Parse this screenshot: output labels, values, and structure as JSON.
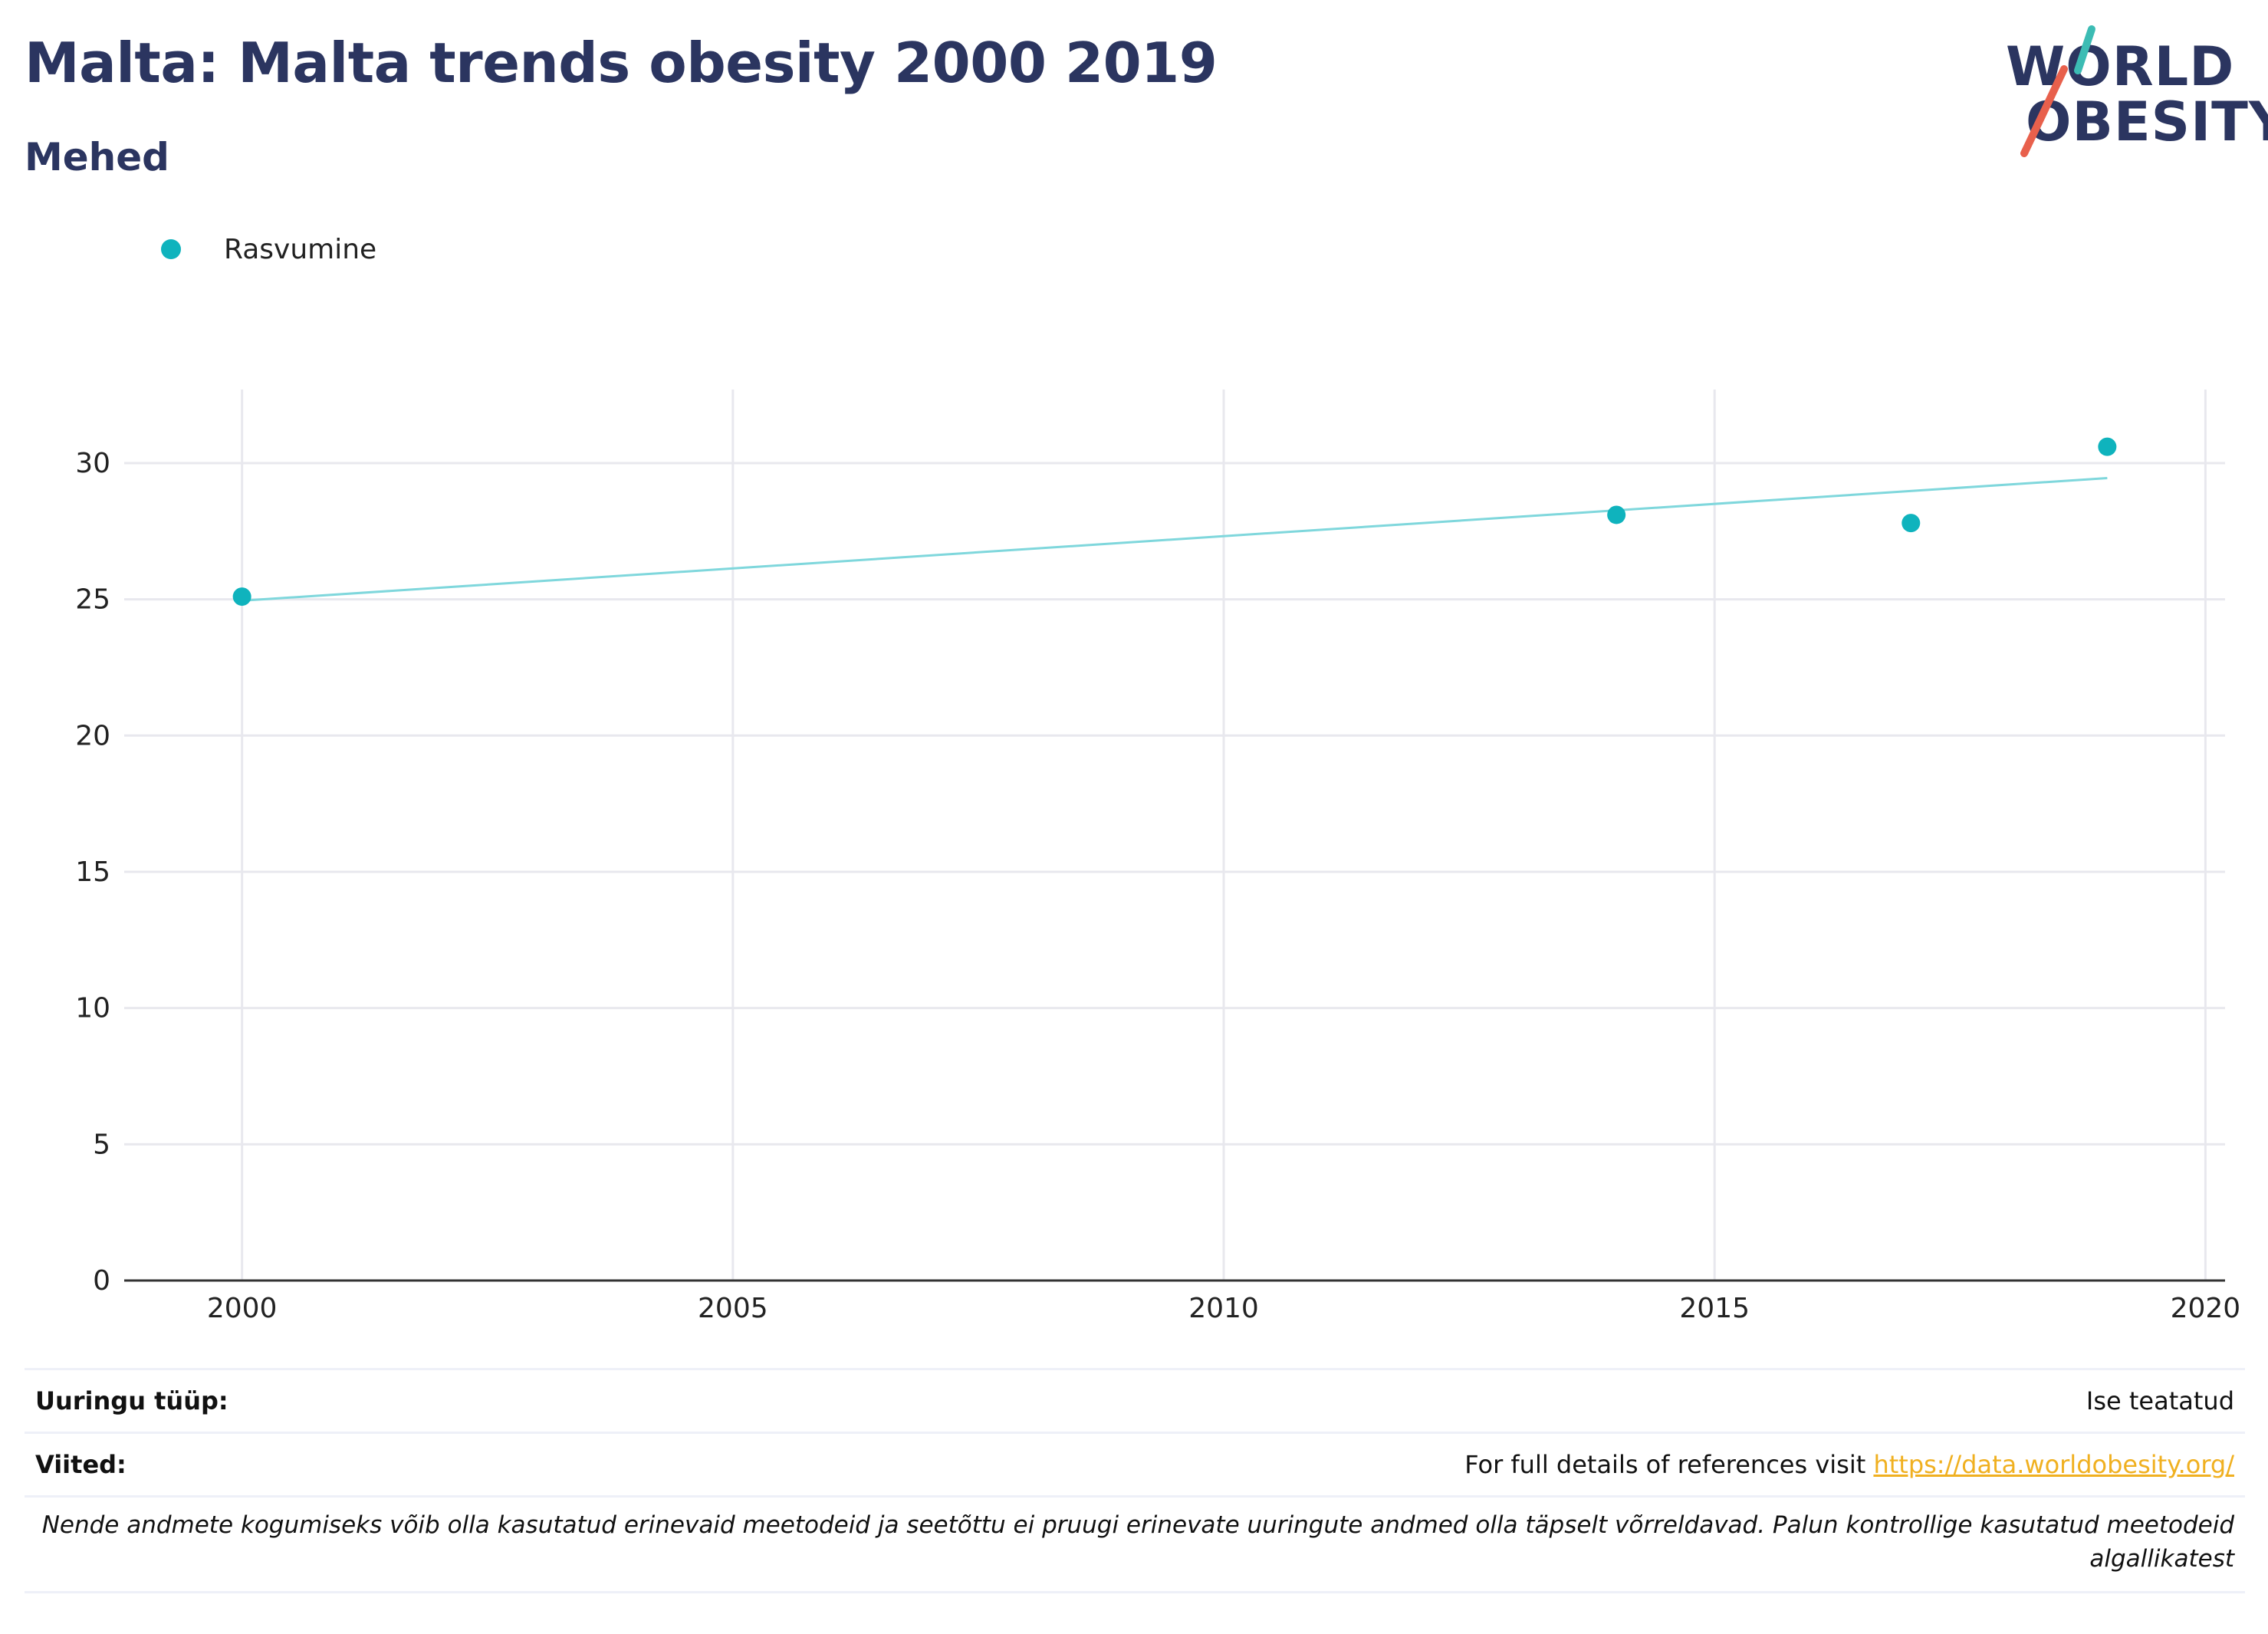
{
  "header": {
    "title": "Malta: Malta trends obesity 2000 2019",
    "subtitle": "Mehed"
  },
  "logo": {
    "line1": "WORLD",
    "line2": "OBESITY"
  },
  "legend": {
    "label": "Rasvumine"
  },
  "colors": {
    "accent": "#0fb3bd",
    "trend_line": "#7fd7dc",
    "title": "#2b3560",
    "link": "#f0b020",
    "logo_teal": "#3cbcb4",
    "logo_red": "#e8604c"
  },
  "chart_data": {
    "type": "scatter",
    "series": [
      {
        "name": "Rasvumine",
        "x": [
          2000,
          2014,
          2017,
          2019
        ],
        "y": [
          25.1,
          28.1,
          27.8,
          30.6
        ]
      }
    ],
    "trendline": {
      "x": [
        2000,
        2019
      ],
      "y": [
        24.95,
        29.45
      ]
    },
    "xticks": [
      "2000",
      "2005",
      "2010",
      "2015",
      "2020"
    ],
    "yticks": [
      "0",
      "5",
      "10",
      "15",
      "20",
      "25",
      "30"
    ],
    "xlim": [
      1998.8,
      2020.2
    ],
    "ylim": [
      0,
      32.7
    ],
    "grid": true,
    "legend_position": "top-left"
  },
  "info": {
    "survey_type_label": "Uuringu tüüp:",
    "survey_type_value": "Ise teatatud",
    "references_label": "Viited:",
    "references_text": "For full details of references visit ",
    "references_link": "https://data.worldobesity.org/",
    "note": "Nende andmete kogumiseks võib olla kasutatud erinevaid meetodeid ja seetõttu ei pruugi erinevate uuringute andmed olla täpselt võrreldavad. Palun kontrollige kasutatud meetodeid algallikatest"
  }
}
